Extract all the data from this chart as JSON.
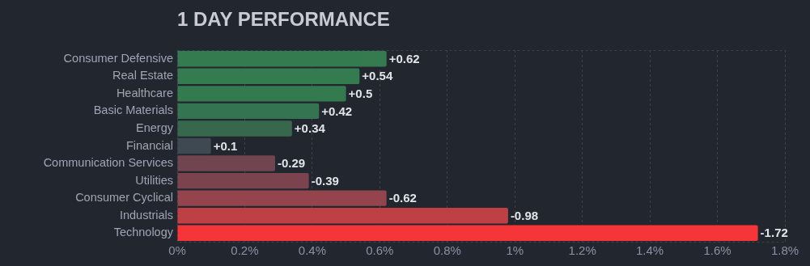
{
  "chart_data": {
    "type": "bar",
    "orientation": "horizontal",
    "title": "1 DAY PERFORMANCE",
    "categories": [
      "Consumer Defensive",
      "Real Estate",
      "Healthcare",
      "Basic Materials",
      "Energy",
      "Financial",
      "Communication Services",
      "Utilities",
      "Consumer Cyclical",
      "Industrials",
      "Technology"
    ],
    "values": [
      0.62,
      0.54,
      0.5,
      0.42,
      0.34,
      0.1,
      -0.29,
      -0.39,
      -0.62,
      -0.98,
      -1.72
    ],
    "base": [
      0,
      0,
      0,
      0,
      0,
      0,
      0.29,
      0.39,
      0.62,
      0.98,
      1.72
    ],
    "value_labels": [
      "+0.62",
      "+0.54",
      "+0.5",
      "+0.42",
      "+0.34",
      "+0.1",
      "-0.29",
      "-0.39",
      "-0.62",
      "-0.98",
      "-1.72"
    ],
    "colors": [
      "#347c4f",
      "#347c4f",
      "#347a4f",
      "#357450",
      "#37684e",
      "#3e4951",
      "#714550",
      "#7a434d",
      "#94444c",
      "#bf4044",
      "#f63538"
    ],
    "xlim": [
      0,
      1.8
    ],
    "xticks": [
      {
        "value": 0,
        "label": "0%"
      },
      {
        "value": 0.2,
        "label": "0.2%"
      },
      {
        "value": 0.4,
        "label": "0.4%"
      },
      {
        "value": 0.6,
        "label": "0.6%"
      },
      {
        "value": 0.8,
        "label": "0.8%"
      },
      {
        "value": 1,
        "label": "1%"
      },
      {
        "value": 1.2,
        "label": "1.2%"
      },
      {
        "value": 1.4,
        "label": "1.4%"
      },
      {
        "value": 1.6,
        "label": "1.6%"
      },
      {
        "value": 1.8,
        "label": "1.8%"
      }
    ],
    "grid": "x",
    "legend": false
  }
}
